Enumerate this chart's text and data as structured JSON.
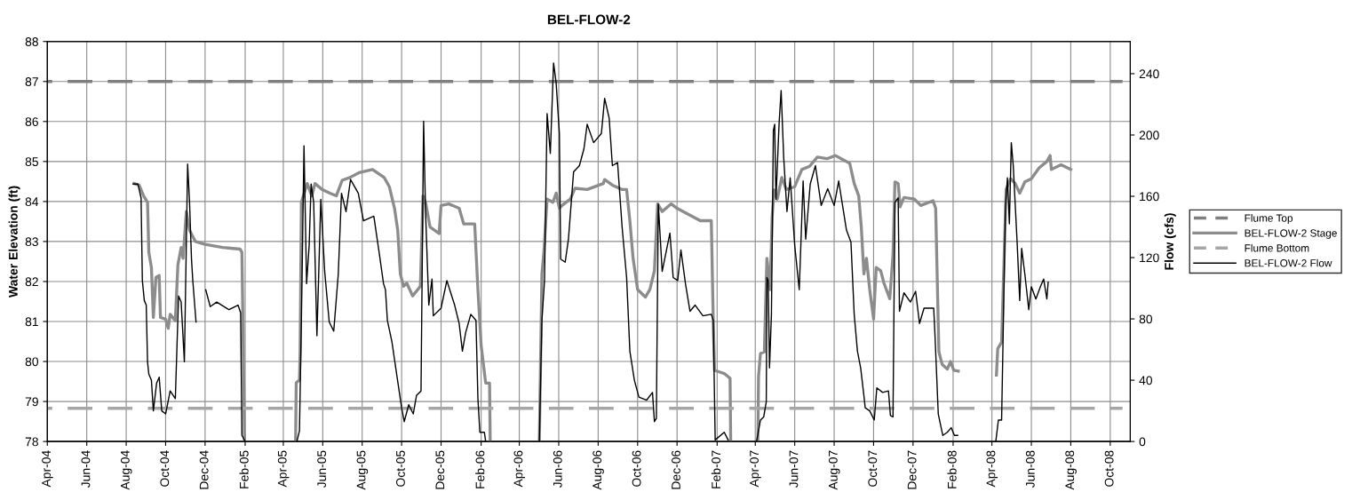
{
  "chart_data": {
    "type": "line",
    "title": "BEL-FLOW-2",
    "ylabel": "Water Elevation (ft)",
    "y2label": "Flow (cfs)",
    "xlim": [
      "2004-04-01",
      "2008-11-01"
    ],
    "xticks": [
      {
        "value": "2004-04-01",
        "label": "Apr-04"
      },
      {
        "value": "2004-06-01",
        "label": "Jun-04"
      },
      {
        "value": "2004-08-01",
        "label": "Aug-04"
      },
      {
        "value": "2004-10-01",
        "label": "Oct-04"
      },
      {
        "value": "2004-12-01",
        "label": "Dec-04"
      },
      {
        "value": "2005-02-01",
        "label": "Feb-05"
      },
      {
        "value": "2005-04-01",
        "label": "Apr-05"
      },
      {
        "value": "2005-06-01",
        "label": "Jun-05"
      },
      {
        "value": "2005-08-01",
        "label": "Aug-05"
      },
      {
        "value": "2005-10-01",
        "label": "Oct-05"
      },
      {
        "value": "2005-12-01",
        "label": "Dec-05"
      },
      {
        "value": "2006-02-01",
        "label": "Feb-06"
      },
      {
        "value": "2006-04-01",
        "label": "Apr-06"
      },
      {
        "value": "2006-06-01",
        "label": "Jun-06"
      },
      {
        "value": "2006-08-01",
        "label": "Aug-06"
      },
      {
        "value": "2006-10-01",
        "label": "Oct-06"
      },
      {
        "value": "2006-12-01",
        "label": "Dec-06"
      },
      {
        "value": "2007-02-01",
        "label": "Feb-07"
      },
      {
        "value": "2007-04-01",
        "label": "Apr-07"
      },
      {
        "value": "2007-06-01",
        "label": "Jun-07"
      },
      {
        "value": "2007-08-01",
        "label": "Aug-07"
      },
      {
        "value": "2007-10-01",
        "label": "Oct-07"
      },
      {
        "value": "2007-12-01",
        "label": "Dec-07"
      },
      {
        "value": "2008-02-01",
        "label": "Feb-08"
      },
      {
        "value": "2008-04-01",
        "label": "Apr-08"
      },
      {
        "value": "2008-06-01",
        "label": "Jun-08"
      },
      {
        "value": "2008-08-01",
        "label": "Aug-08"
      },
      {
        "value": "2008-10-01",
        "label": "Oct-08"
      }
    ],
    "ylim": [
      78,
      88
    ],
    "yticks": [
      78,
      79,
      80,
      81,
      82,
      83,
      84,
      85,
      86,
      87,
      88
    ],
    "y2lim": [
      0,
      261
    ],
    "y2ticks": [
      0,
      40,
      80,
      120,
      160,
      200,
      240
    ],
    "grid": true,
    "legend": "right",
    "marker": "none",
    "series": [
      {
        "name": "Flume Top",
        "color": "#7f7f7f",
        "line_style": "dashed",
        "x": [
          "2004-04-01",
          "2008-10-20"
        ],
        "values": [
          87.0,
          87.0
        ]
      },
      {
        "name": "BEL-FLOW-2 Stage",
        "color": "#8c8c8c",
        "line_style": "solid",
        "x": [
          "2004-08-13",
          "2004-08-21",
          "2004-08-28",
          "2004-09-03",
          "2004-09-05",
          "2004-09-09",
          "2004-09-12",
          "2004-09-16",
          "2004-09-21",
          "2004-09-23",
          "2004-10-01",
          "2004-10-05",
          "2004-10-08",
          "2004-10-16",
          "2004-10-20",
          "2004-10-25",
          "2004-10-28",
          "2004-11-02",
          "2004-11-07",
          "2004-11-16",
          "2004-12-01",
          "2004-12-28",
          "2005-01-24",
          "2005-01-27",
          "2005-01-31",
          "2005-03-01",
          "2005-04-20",
          "2005-04-21",
          "2005-04-26",
          "2005-04-27",
          "2005-04-29",
          "2005-05-02",
          "2005-05-08",
          "2005-05-15",
          "2005-05-20",
          "2005-05-31",
          "2005-06-12",
          "2005-06-22",
          "2005-07-01",
          "2005-07-13",
          "2005-07-27",
          "2005-08-17",
          "2005-09-04",
          "2005-09-12",
          "2005-09-20",
          "2005-09-25",
          "2005-09-29",
          "2005-10-04",
          "2005-10-09",
          "2005-10-18",
          "2005-10-30",
          "2005-11-03",
          "2005-11-07",
          "2005-11-14",
          "2005-11-28",
          "2005-12-01",
          "2005-12-13",
          "2005-12-29",
          "2006-01-05",
          "2006-01-22",
          "2006-01-27",
          "2006-02-01",
          "2006-02-08",
          "2006-02-14",
          "2006-02-15",
          "2006-03-15",
          "2006-05-02",
          "2006-05-06",
          "2006-05-09",
          "2006-05-14",
          "2006-05-23",
          "2006-05-28",
          "2006-06-02",
          "2006-06-06",
          "2006-06-19",
          "2006-06-26",
          "2006-07-15",
          "2006-08-09",
          "2006-08-11",
          "2006-08-23",
          "2006-09-07",
          "2006-09-14",
          "2006-09-19",
          "2006-09-24",
          "2006-10-01",
          "2006-10-13",
          "2006-10-20",
          "2006-10-27",
          "2006-11-01",
          "2006-11-08",
          "2006-11-22",
          "2006-12-01",
          "2006-12-15",
          "2007-01-06",
          "2007-01-23",
          "2007-01-26",
          "2007-01-28",
          "2007-02-12",
          "2007-02-21",
          "2007-02-22",
          "2007-03-15",
          "2007-04-05",
          "2007-04-06",
          "2007-04-09",
          "2007-04-15",
          "2007-04-19",
          "2007-04-24",
          "2007-04-27",
          "2007-04-30",
          "2007-05-05",
          "2007-05-12",
          "2007-05-19",
          "2007-06-01",
          "2007-06-12",
          "2007-06-24",
          "2007-07-06",
          "2007-07-21",
          "2007-08-03",
          "2007-08-15",
          "2007-08-25",
          "2007-09-01",
          "2007-09-08",
          "2007-09-12",
          "2007-09-16",
          "2007-09-20",
          "2007-09-25",
          "2007-10-01",
          "2007-10-05",
          "2007-10-12",
          "2007-10-17",
          "2007-10-26",
          "2007-10-31",
          "2007-11-03",
          "2007-11-08",
          "2007-11-11",
          "2007-11-17",
          "2007-12-03",
          "2007-12-13",
          "2008-01-01",
          "2008-01-05",
          "2008-01-10",
          "2008-01-15",
          "2008-01-23",
          "2008-01-28",
          "2008-02-02",
          "2008-02-09",
          "2008-03-10",
          "2008-04-08",
          "2008-04-10",
          "2008-04-16",
          "2008-04-23",
          "2008-04-30",
          "2008-05-07",
          "2008-05-14",
          "2008-05-22",
          "2008-06-01",
          "2008-06-13",
          "2008-06-25",
          "2008-06-30",
          "2008-07-02",
          "2008-07-17",
          "2008-08-01"
        ],
        "values": [
          84.45,
          84.41,
          84.14,
          83.98,
          82.73,
          82.35,
          81.1,
          82.1,
          82.15,
          81.1,
          81.06,
          80.83,
          81.18,
          81.02,
          82.42,
          82.85,
          82.58,
          83.75,
          83.28,
          83.0,
          82.93,
          82.85,
          82.81,
          82.73,
          78.0,
          null,
          78.0,
          79.47,
          79.54,
          80.24,
          83.98,
          84.14,
          84.45,
          84.14,
          84.45,
          84.3,
          84.21,
          84.14,
          84.53,
          84.6,
          84.72,
          84.8,
          84.6,
          84.37,
          83.83,
          83.28,
          82.19,
          81.88,
          81.96,
          81.64,
          81.88,
          84.14,
          83.98,
          83.36,
          83.2,
          83.9,
          83.94,
          83.83,
          83.44,
          83.44,
          81.8,
          80.4,
          79.46,
          79.46,
          78.0,
          null,
          78.0,
          82.19,
          82.73,
          84.06,
          83.98,
          84.21,
          83.83,
          83.9,
          84.06,
          84.33,
          84.3,
          84.45,
          84.55,
          84.41,
          84.3,
          84.3,
          83.52,
          82.58,
          81.8,
          81.61,
          81.8,
          82.27,
          83.94,
          83.75,
          83.94,
          83.83,
          83.71,
          83.52,
          83.52,
          81.02,
          79.78,
          79.7,
          79.58,
          78.0,
          null,
          78.0,
          79.62,
          80.2,
          80.24,
          82.58,
          81.8,
          83.59,
          84.29,
          84.06,
          84.6,
          84.3,
          84.37,
          84.8,
          84.88,
          85.11,
          85.07,
          85.15,
          85.04,
          84.96,
          84.45,
          84.14,
          83.36,
          82.19,
          82.58,
          81.8,
          81.06,
          82.35,
          82.27,
          81.96,
          81.57,
          82.66,
          84.49,
          84.45,
          83.87,
          84.1,
          84.06,
          83.9,
          84.02,
          83.83,
          80.24,
          79.93,
          79.81,
          80.0,
          79.78,
          79.76,
          null,
          79.66,
          80.32,
          80.48,
          84.3,
          84.57,
          84.45,
          84.21,
          84.49,
          84.57,
          84.84,
          85.0,
          85.15,
          84.8,
          84.92,
          84.8
        ]
      },
      {
        "name": "Flume Bottom",
        "color": "#a6a6a6",
        "line_style": "dashed",
        "x": [
          "2004-04-01",
          "2008-10-20"
        ],
        "values": [
          78.83,
          78.83
        ]
      },
      {
        "name": "BEL-FLOW-2 Flow",
        "color": "#000000",
        "line_style": "solid",
        "axis": "y2",
        "x": [
          "2004-08-12",
          "2004-08-19",
          "2004-08-24",
          "2004-08-26",
          "2004-08-29",
          "2004-09-01",
          "2004-09-03",
          "2004-09-05",
          "2004-09-09",
          "2004-09-12",
          "2004-09-17",
          "2004-09-21",
          "2004-09-25",
          "2004-10-01",
          "2004-10-08",
          "2004-10-16",
          "2004-10-21",
          "2004-10-25",
          "2004-10-30",
          "2004-11-04",
          "2004-11-07",
          "2004-11-10",
          "2004-11-12",
          "2004-11-17",
          "2004-11-25",
          "2004-12-02",
          "2004-12-09",
          "2004-12-19",
          "2005-01-07",
          "2005-01-21",
          "2005-01-25",
          "2005-01-27",
          "2005-02-01",
          "2005-03-01",
          "2005-04-22",
          "2005-04-26",
          "2005-04-29",
          "2005-05-03",
          "2005-05-07",
          "2005-05-11",
          "2005-05-14",
          "2005-05-18",
          "2005-05-23",
          "2005-05-26",
          "2005-05-29",
          "2005-06-04",
          "2005-06-11",
          "2005-06-18",
          "2005-06-25",
          "2005-06-30",
          "2005-07-07",
          "2005-07-14",
          "2005-07-26",
          "2005-08-03",
          "2005-08-19",
          "2005-08-27",
          "2005-09-03",
          "2005-09-06",
          "2005-09-09",
          "2005-09-16",
          "2005-09-24",
          "2005-10-01",
          "2005-10-05",
          "2005-10-12",
          "2005-10-19",
          "2005-10-24",
          "2005-10-31",
          "2005-11-04",
          "2005-11-07",
          "2005-11-12",
          "2005-11-17",
          "2005-11-19",
          "2005-12-01",
          "2005-12-10",
          "2005-12-22",
          "2005-12-29",
          "2006-01-03",
          "2006-01-08",
          "2006-01-16",
          "2006-01-24",
          "2006-01-27",
          "2006-01-30",
          "2006-02-06",
          "2006-02-08",
          "2006-03-15",
          "2006-05-02",
          "2006-05-06",
          "2006-05-10",
          "2006-05-14",
          "2006-05-19",
          "2006-05-24",
          "2006-05-28",
          "2006-06-02",
          "2006-06-04",
          "2006-06-11",
          "2006-06-16",
          "2006-06-24",
          "2006-07-03",
          "2006-07-10",
          "2006-07-15",
          "2006-07-25",
          "2006-08-06",
          "2006-08-11",
          "2006-08-18",
          "2006-08-23",
          "2006-08-31",
          "2006-09-07",
          "2006-09-14",
          "2006-09-19",
          "2006-09-26",
          "2006-10-03",
          "2006-10-15",
          "2006-10-24",
          "2006-10-27",
          "2006-10-30",
          "2006-11-02",
          "2006-11-08",
          "2006-11-20",
          "2006-11-25",
          "2006-12-02",
          "2006-12-07",
          "2006-12-14",
          "2006-12-21",
          "2006-12-29",
          "2007-01-10",
          "2007-01-23",
          "2007-01-26",
          "2007-01-29",
          "2007-02-12",
          "2007-02-18",
          "2007-03-15",
          "2007-04-03",
          "2007-04-09",
          "2007-04-14",
          "2007-04-18",
          "2007-04-19",
          "2007-04-21",
          "2007-04-23",
          "2007-04-26",
          "2007-04-29",
          "2007-05-01",
          "2007-05-03",
          "2007-05-08",
          "2007-05-11",
          "2007-05-15",
          "2007-05-20",
          "2007-05-25",
          "2007-06-01",
          "2007-06-08",
          "2007-06-14",
          "2007-06-18",
          "2007-06-25",
          "2007-07-03",
          "2007-07-12",
          "2007-07-22",
          "2007-08-01",
          "2007-08-08",
          "2007-08-14",
          "2007-08-20",
          "2007-08-27",
          "2007-09-01",
          "2007-09-06",
          "2007-09-11",
          "2007-09-16",
          "2007-09-18",
          "2007-09-25",
          "2007-10-02",
          "2007-10-06",
          "2007-10-15",
          "2007-10-24",
          "2007-10-27",
          "2007-10-31",
          "2007-11-03",
          "2007-11-08",
          "2007-11-10",
          "2007-11-17",
          "2007-11-27",
          "2007-12-05",
          "2007-12-11",
          "2007-12-18",
          "2008-01-02",
          "2008-01-04",
          "2008-01-09",
          "2008-01-16",
          "2008-01-23",
          "2008-01-29",
          "2008-02-03",
          "2008-02-08",
          "2008-03-10",
          "2008-04-07",
          "2008-04-11",
          "2008-04-16",
          "2008-04-22",
          "2008-04-25",
          "2008-04-28",
          "2008-05-01",
          "2008-05-04",
          "2008-05-10",
          "2008-05-14",
          "2008-05-17",
          "2008-05-22",
          "2008-05-28",
          "2008-06-01",
          "2008-06-08",
          "2008-06-15",
          "2008-06-20",
          "2008-06-25",
          "2008-06-27"
        ],
        "values": [
          168,
          168,
          159,
          105,
          92,
          89,
          52,
          44,
          40,
          20,
          38,
          42,
          20,
          18,
          33,
          28,
          95,
          91,
          52,
          181,
          156,
          119,
          105,
          78,
          null,
          99,
          88,
          91,
          86,
          89,
          84,
          4,
          0,
          null,
          0,
          7,
          79,
          193,
          103,
          128,
          168,
          156,
          69,
          113,
          158,
          111,
          78,
          72,
          109,
          162,
          150,
          171,
          162,
          144,
          147,
          124,
          103,
          99,
          79,
          65,
          42,
          22,
          13,
          24,
          18,
          30,
          33,
          209,
          150,
          89,
          106,
          82,
          87,
          105,
          89,
          77,
          59,
          71,
          83,
          79,
          28,
          6,
          6,
          0,
          null,
          0,
          79,
          105,
          214,
          188,
          247,
          234,
          201,
          119,
          117,
          132,
          176,
          180,
          191,
          207,
          195,
          201,
          224,
          211,
          180,
          182,
          140,
          107,
          59,
          40,
          29,
          27,
          32,
          13,
          15,
          155,
          111,
          136,
          107,
          105,
          125,
          103,
          85,
          89,
          82,
          83,
          79,
          1,
          6,
          1,
          null,
          0,
          14,
          16,
          26,
          107,
          105,
          48,
          83,
          203,
          207,
          158,
          209,
          229,
          185,
          150,
          172,
          128,
          99,
          170,
          132,
          168,
          180,
          154,
          165,
          154,
          170,
          154,
          138,
          130,
          83,
          59,
          48,
          30,
          22,
          20,
          14,
          35,
          32,
          33,
          17,
          16,
          156,
          159,
          85,
          97,
          91,
          98,
          77,
          87,
          87,
          69,
          18,
          4,
          6,
          9,
          4,
          4,
          null,
          0,
          14,
          14,
          154,
          172,
          142,
          195,
          180,
          130,
          92,
          126,
          109,
          86,
          101,
          93,
          101,
          106,
          93,
          104
        ]
      }
    ]
  }
}
